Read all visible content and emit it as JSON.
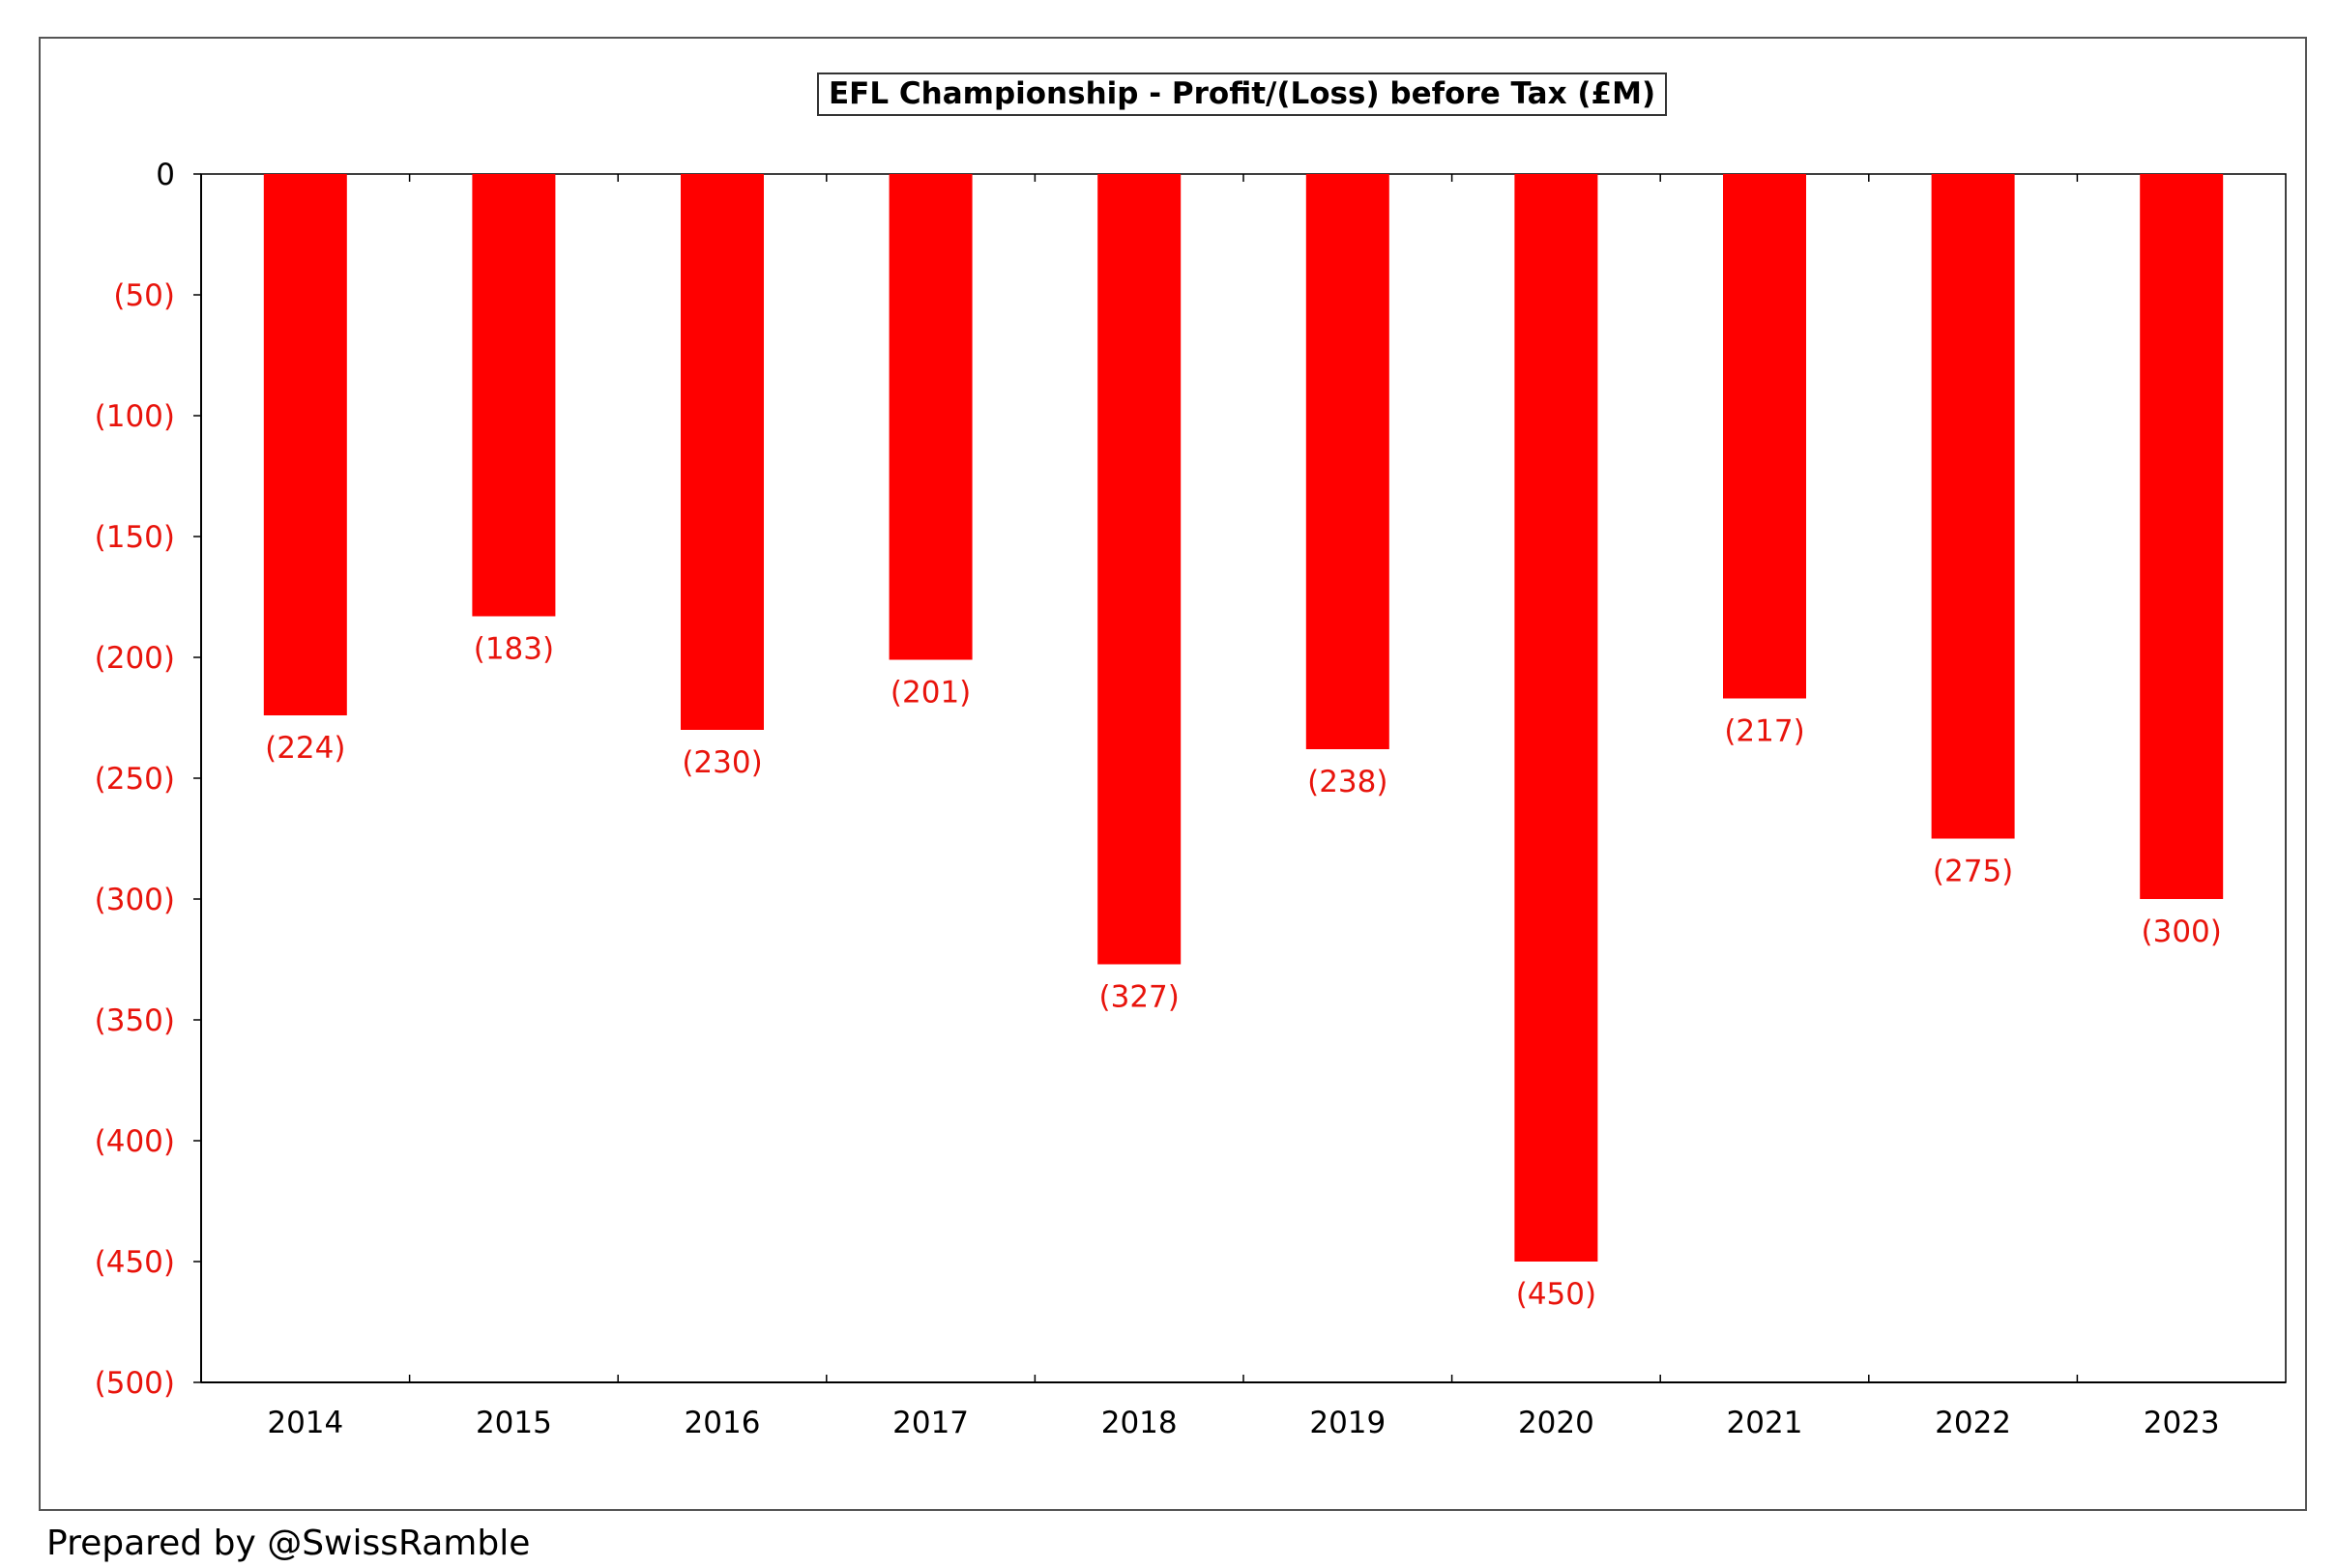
{
  "footer": {
    "credit": "Prepared by @SwissRamble"
  },
  "colors": {
    "bar": "#ff0000",
    "negative_label": "#e8140c",
    "axis_text": "#000000"
  },
  "chart_data": {
    "type": "bar",
    "title": "EFL Championship - Profit/(Loss) before Tax (£M)",
    "xlabel": "",
    "ylabel": "",
    "categories": [
      "2014",
      "2015",
      "2016",
      "2017",
      "2018",
      "2019",
      "2020",
      "2021",
      "2022",
      "2023"
    ],
    "values": [
      -224,
      -183,
      -230,
      -201,
      -327,
      -238,
      -450,
      -217,
      -275,
      -300
    ],
    "data_labels": [
      "(224)",
      "(183)",
      "(230)",
      "(201)",
      "(327)",
      "(238)",
      "(450)",
      "(217)",
      "(275)",
      "(300)"
    ],
    "ylim": [
      -500,
      0
    ],
    "yticks": [
      0,
      -50,
      -100,
      -150,
      -200,
      -250,
      -300,
      -350,
      -400,
      -450,
      -500
    ],
    "ytick_labels": [
      "0",
      "(50)",
      "(100)",
      "(150)",
      "(200)",
      "(250)",
      "(300)",
      "(350)",
      "(400)",
      "(450)",
      "(500)"
    ],
    "grid": false,
    "legend": "none"
  }
}
